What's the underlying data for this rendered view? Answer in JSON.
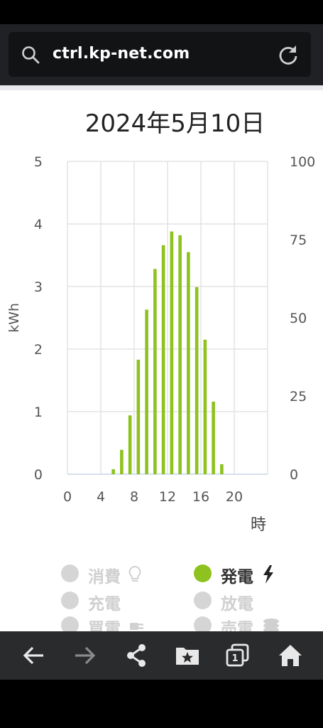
{
  "browser": {
    "url": "ctrl.kp-net.com"
  },
  "page": {
    "date_title": "2024年5月10日"
  },
  "chart_data": {
    "type": "bar",
    "title": "2024年5月10日",
    "ylabel": "kWh",
    "xlabel": "時",
    "ylim": [
      0,
      5
    ],
    "y2lim": [
      0,
      100
    ],
    "xlim": [
      0,
      24
    ],
    "yticks": [
      "0",
      "1",
      "2",
      "3",
      "4",
      "5"
    ],
    "y2ticks": [
      "0",
      "25",
      "50",
      "75",
      "100"
    ],
    "xticks": [
      "0",
      "4",
      "8",
      "12",
      "16",
      "20"
    ],
    "grid": true,
    "series": [
      {
        "name": "発電",
        "color": "#8dc21f",
        "x": [
          5,
          6,
          7,
          8,
          9,
          10,
          11,
          12,
          13,
          14,
          15,
          16,
          17,
          18
        ],
        "values": [
          0.08,
          0.39,
          0.94,
          1.83,
          2.63,
          3.28,
          3.66,
          3.88,
          3.82,
          3.55,
          2.99,
          2.15,
          1.16,
          0.16
        ]
      }
    ]
  },
  "legend": {
    "consumption": "消費",
    "generation": "発電",
    "charge": "充電",
    "discharge": "放電",
    "purchase": "買電",
    "sale": "売電"
  },
  "colors": {
    "generation": "#8dc21f",
    "inactive": "#d5d5d5"
  },
  "icons": {
    "search": "search-icon",
    "reload": "reload-icon",
    "back": "arrow-left-icon",
    "forward": "arrow-right-icon",
    "share": "share-icon",
    "bookmarks": "bookmark-folder-icon",
    "tabs": "tab-switcher-icon",
    "home": "home-icon"
  },
  "nav": {
    "tab_count": "1"
  }
}
